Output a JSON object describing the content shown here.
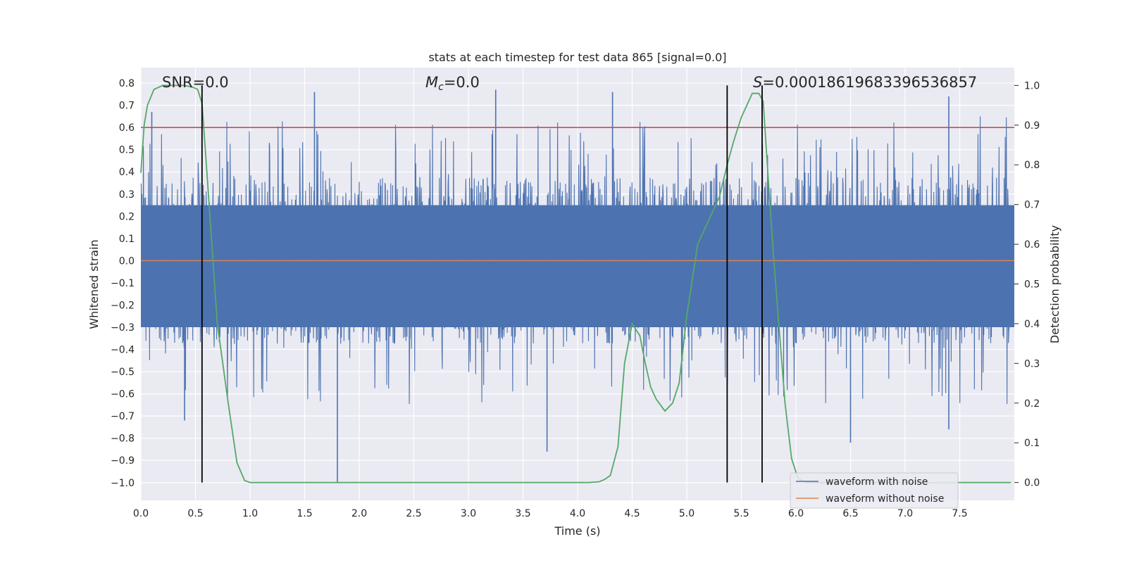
{
  "chart_data": {
    "type": "line",
    "title": "stats at each timestep for test data 865 [signal=0.0]",
    "xlabel": "Time (s)",
    "ylabel_left": "Whitened strain",
    "ylabel_right": "Detection probability",
    "xlim": [
      0.0,
      8.0
    ],
    "ylim_left": [
      -1.08,
      0.87
    ],
    "ylim_right": [
      -0.045,
      1.045
    ],
    "x_ticks": [
      "0.0",
      "0.5",
      "1.0",
      "1.5",
      "2.0",
      "2.5",
      "3.0",
      "3.5",
      "4.0",
      "4.5",
      "5.0",
      "5.5",
      "6.0",
      "6.5",
      "7.0",
      "7.5"
    ],
    "y_left_ticks": [
      "0.8",
      "0.7",
      "0.6",
      "0.5",
      "0.4",
      "0.3",
      "0.2",
      "0.1",
      "0.0",
      "−0.1",
      "−0.2",
      "−0.3",
      "−0.4",
      "−0.5",
      "−0.6",
      "−0.7",
      "−0.8",
      "−0.9",
      "−1.0"
    ],
    "y_right_ticks": [
      "1.0",
      "0.9",
      "0.8",
      "0.7",
      "0.6",
      "0.5",
      "0.4",
      "0.3",
      "0.2",
      "0.1",
      "0.0"
    ],
    "grid": true,
    "legend_position": "lower-right",
    "annotations": {
      "snr": "SNR=0.0",
      "mc_symbol": "M",
      "mc_sub": "c",
      "mc_value": "=0.0",
      "s_symbol": "S",
      "s_value": "=0.00018619683396536857"
    },
    "threshold_left": 0.6,
    "vertical_lines_x": [
      0.56,
      5.37,
      5.69
    ],
    "series": [
      {
        "name": "waveform with noise",
        "color": "#4c72b0",
        "kind": "noise",
        "amplitude_core": [
          -0.3,
          0.25
        ],
        "extreme_peaks": [
          [
            0.1,
            0.67
          ],
          [
            1.59,
            0.76
          ],
          [
            3.25,
            0.77
          ],
          [
            4.32,
            0.76
          ],
          [
            7.4,
            0.74
          ]
        ],
        "extreme_troughs": [
          [
            0.4,
            -0.72
          ],
          [
            1.8,
            -1.0
          ],
          [
            3.72,
            -0.86
          ],
          [
            6.5,
            -0.82
          ],
          [
            7.4,
            -0.76
          ]
        ]
      },
      {
        "name": "waveform without noise",
        "color": "#dd8452",
        "x": [
          0.0,
          8.0
        ],
        "y": [
          0.0,
          0.0
        ]
      },
      {
        "name": "",
        "color": "#55a868",
        "axis": "right",
        "x": [
          0.0,
          0.03,
          0.06,
          0.12,
          0.2,
          0.3,
          0.4,
          0.48,
          0.52,
          0.56,
          0.6,
          0.65,
          0.7,
          0.8,
          0.88,
          0.95,
          1.0,
          2.0,
          3.0,
          4.0,
          4.1,
          4.2,
          4.25,
          4.3,
          4.37,
          4.43,
          4.5,
          4.57,
          4.62,
          4.67,
          4.72,
          4.8,
          4.87,
          4.93,
          5.0,
          5.1,
          5.2,
          5.3,
          5.37,
          5.43,
          5.5,
          5.55,
          5.6,
          5.66,
          5.7,
          5.75,
          5.8,
          5.9,
          5.96,
          6.02,
          6.1,
          7.0,
          7.97
        ],
        "y": [
          0.78,
          0.9,
          0.95,
          0.99,
          1.0,
          1.0,
          1.0,
          0.995,
          0.99,
          0.955,
          0.8,
          0.6,
          0.4,
          0.2,
          0.05,
          0.005,
          0.0,
          0.0,
          0.0,
          0.0,
          0.0,
          0.002,
          0.008,
          0.018,
          0.09,
          0.3,
          0.4,
          0.37,
          0.3,
          0.24,
          0.21,
          0.18,
          0.2,
          0.25,
          0.42,
          0.6,
          0.66,
          0.72,
          0.8,
          0.86,
          0.92,
          0.95,
          0.98,
          0.98,
          0.96,
          0.75,
          0.55,
          0.2,
          0.06,
          0.01,
          0.0,
          0.0,
          0.0
        ]
      },
      {
        "name": "",
        "color": "#c44e52",
        "axis": "left",
        "x": [
          0.0,
          8.0
        ],
        "y": [
          0.6,
          0.6
        ]
      }
    ]
  }
}
